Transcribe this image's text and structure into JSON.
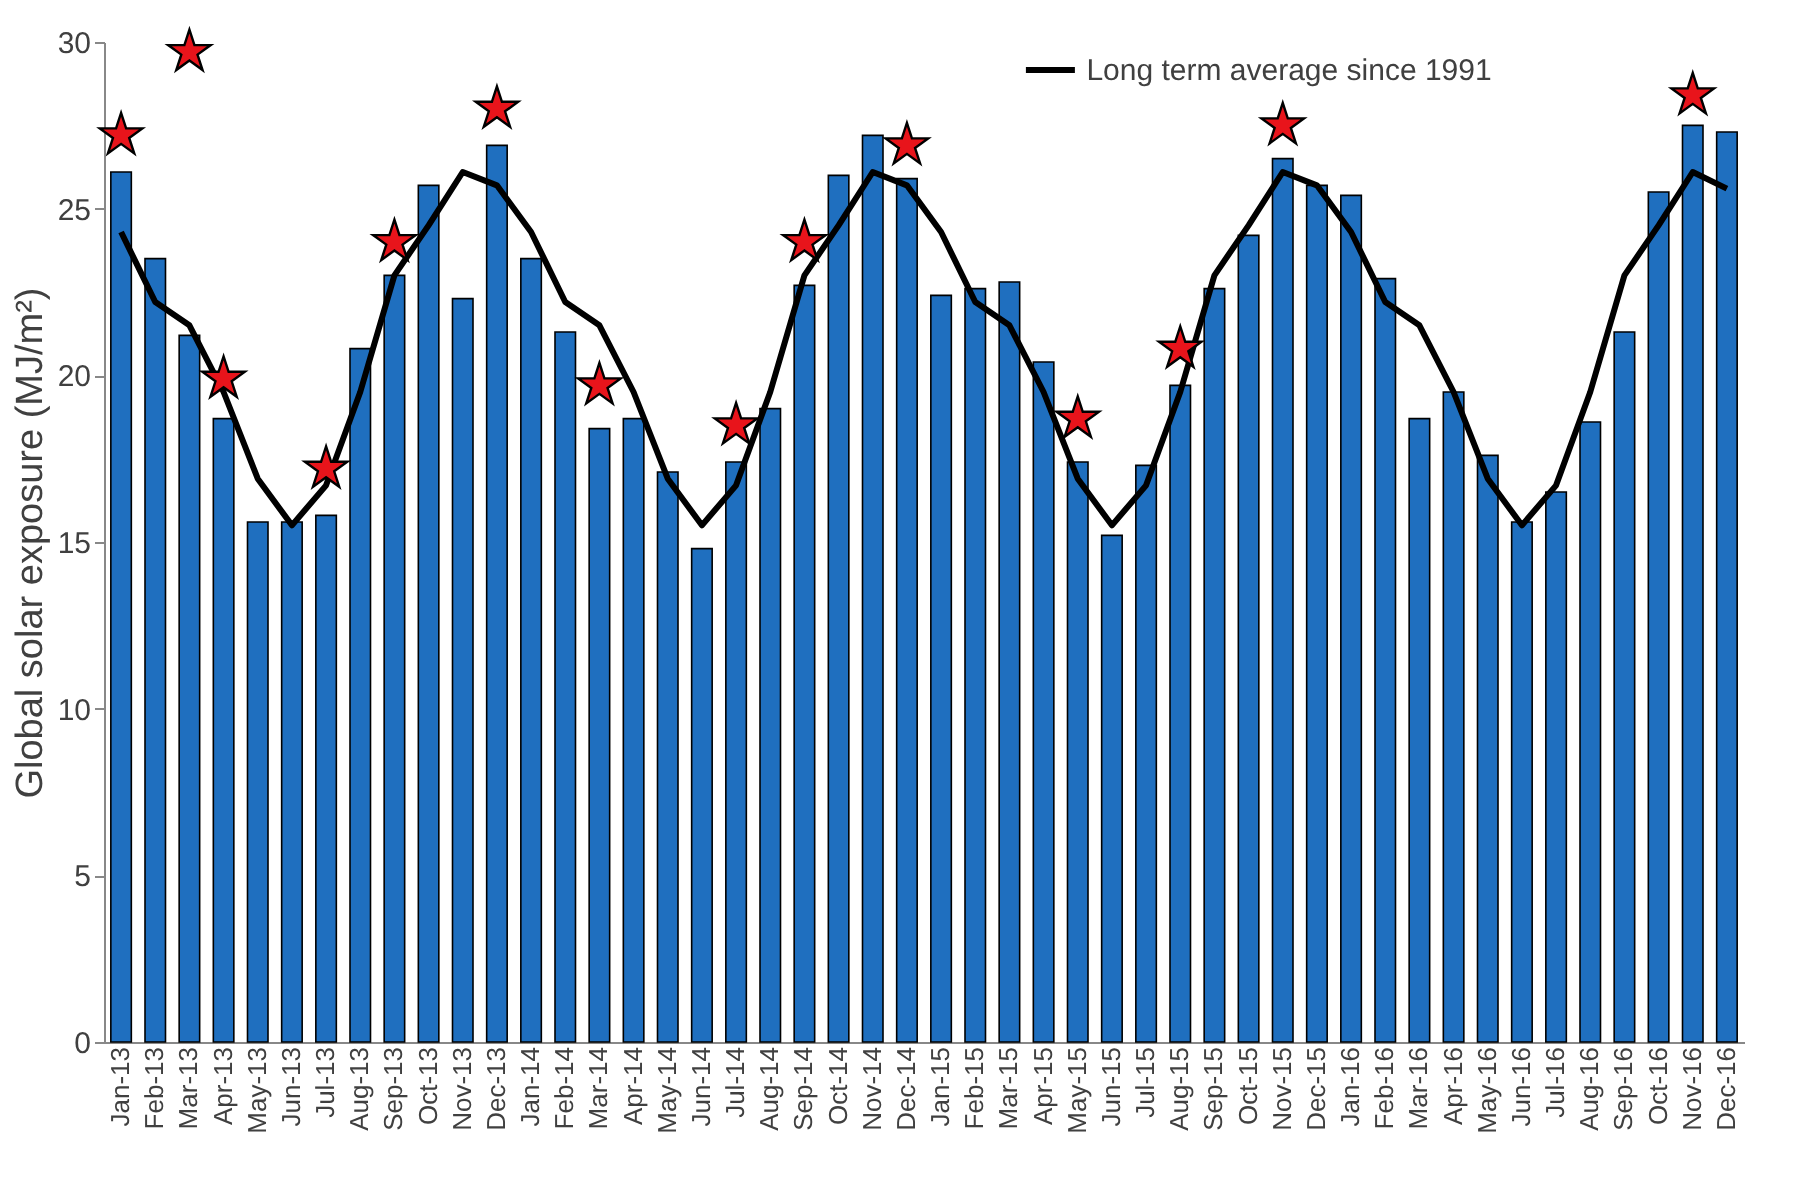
{
  "chart_data": {
    "type": "bar",
    "ylabel": "Global solar exposure (MJ/m²)",
    "categories": [
      "Jan-13",
      "Feb-13",
      "Mar-13",
      "Apr-13",
      "May-13",
      "Jun-13",
      "Jul-13",
      "Aug-13",
      "Sep-13",
      "Oct-13",
      "Nov-13",
      "Dec-13",
      "Jan-14",
      "Feb-14",
      "Mar-14",
      "Apr-14",
      "May-14",
      "Jun-14",
      "Jul-14",
      "Aug-14",
      "Sep-14",
      "Oct-14",
      "Nov-14",
      "Dec-14",
      "Jan-15",
      "Feb-15",
      "Mar-15",
      "Apr-15",
      "May-15",
      "Jun-15",
      "Jul-15",
      "Aug-15",
      "Sep-15",
      "Oct-15",
      "Nov-15",
      "Dec-15",
      "Jan-16",
      "Feb-16",
      "Mar-16",
      "Apr-16",
      "May-16",
      "Jun-16",
      "Jul-16",
      "Aug-16",
      "Sep-16",
      "Oct-16",
      "Nov-16",
      "Dec-16"
    ],
    "series": [
      {
        "color": "#1f6fbf",
        "values": [
          26.1,
          23.5,
          21.2,
          18.7,
          15.6,
          15.6,
          15.8,
          20.8,
          23.0,
          25.7,
          22.3,
          26.9,
          23.5,
          21.3,
          18.4,
          18.7,
          17.1,
          14.8,
          17.4,
          19.0,
          22.7,
          26.0,
          27.2,
          25.9,
          22.4,
          22.6,
          22.8,
          20.4,
          17.4,
          15.2,
          17.3,
          19.7,
          22.6,
          24.2,
          26.5,
          25.7,
          25.4,
          22.9,
          18.7,
          19.5,
          17.6,
          15.6,
          16.5,
          18.6,
          21.3,
          25.5,
          27.5,
          27.3
        ]
      },
      {
        "type": "line",
        "name": "Long term average since 1991",
        "color": "#000000",
        "values": [
          24.3,
          22.2,
          21.5,
          19.5,
          16.9,
          15.5,
          16.7,
          19.5,
          23.0,
          24.5,
          26.1,
          25.7,
          24.3,
          22.2,
          21.5,
          19.5,
          16.9,
          15.5,
          16.7,
          19.5,
          23.0,
          24.5,
          26.1,
          25.7,
          24.3,
          22.2,
          21.5,
          19.5,
          16.9,
          15.5,
          16.7,
          19.5,
          23.0,
          24.5,
          26.1,
          25.7,
          24.3,
          22.2,
          21.5,
          19.5,
          16.9,
          15.5,
          16.7,
          19.5,
          23.0,
          24.5,
          26.1,
          25.6
        ]
      },
      {
        "type": "scatter",
        "color": "#e8141b",
        "marker": "star",
        "x": [
          "Jan-13",
          "Mar-13",
          "Apr-13",
          "Jul-13",
          "Sep-13",
          "Dec-13",
          "Mar-14",
          "Jul-14",
          "Sep-14",
          "Dec-14",
          "May-15",
          "Aug-15",
          "Nov-15",
          "Nov-16"
        ],
        "values": [
          27.2,
          29.7,
          19.9,
          17.2,
          24.0,
          28.0,
          19.7,
          18.5,
          24.0,
          26.9,
          18.7,
          20.8,
          27.5,
          28.4
        ]
      }
    ],
    "ylim": [
      0,
      30
    ],
    "yticks": [
      0,
      5,
      10,
      15,
      20,
      25,
      30
    ],
    "grid": false,
    "legend": "top right",
    "line_style": "solid"
  }
}
